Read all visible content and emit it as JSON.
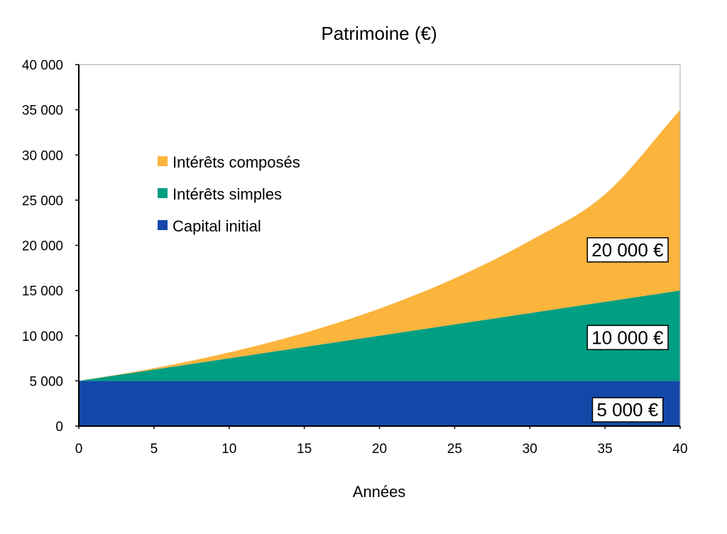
{
  "chart_data": {
    "type": "area",
    "stacked": true,
    "title": "Patrimoine (€)",
    "xlabel": "Années",
    "ylabel": "",
    "xlim": [
      0,
      40
    ],
    "ylim": [
      0,
      40000
    ],
    "x_ticks": [
      0,
      5,
      10,
      15,
      20,
      25,
      30,
      35,
      40
    ],
    "y_ticks": [
      0,
      5000,
      10000,
      15000,
      20000,
      25000,
      30000,
      35000,
      40000
    ],
    "y_tick_labels": [
      "0",
      "5 000",
      "10 000",
      "15 000",
      "20 000",
      "25 000",
      "30 000",
      "35 000",
      "40 000"
    ],
    "x": [
      0,
      5,
      10,
      15,
      20,
      25,
      30,
      35,
      40
    ],
    "series": [
      {
        "name": "Capital initial",
        "color": "#1448a8",
        "values": [
          5000,
          5000,
          5000,
          5000,
          5000,
          5000,
          5000,
          5000,
          5000
        ]
      },
      {
        "name": "Intérêts simples",
        "color": "#009e82",
        "values": [
          0,
          1250,
          2500,
          3750,
          5000,
          6250,
          7500,
          8750,
          10000
        ]
      },
      {
        "name": "Intérêts composés",
        "color": "#fbb43c",
        "values": [
          0,
          150,
          650,
          1560,
          3000,
          5100,
          8000,
          11900,
          20000
        ]
      }
    ],
    "legend": {
      "placement": "upper-left",
      "entries": [
        "Intérêts composés",
        "Intérêts simples",
        "Capital initial"
      ]
    },
    "annotations": [
      {
        "text": "20 000 €",
        "x": 36.5,
        "y": 19500
      },
      {
        "text": "10 000 €",
        "x": 36.5,
        "y": 9800
      },
      {
        "text": "5 000 €",
        "x": 36.5,
        "y": 1800
      }
    ],
    "grid": false
  }
}
